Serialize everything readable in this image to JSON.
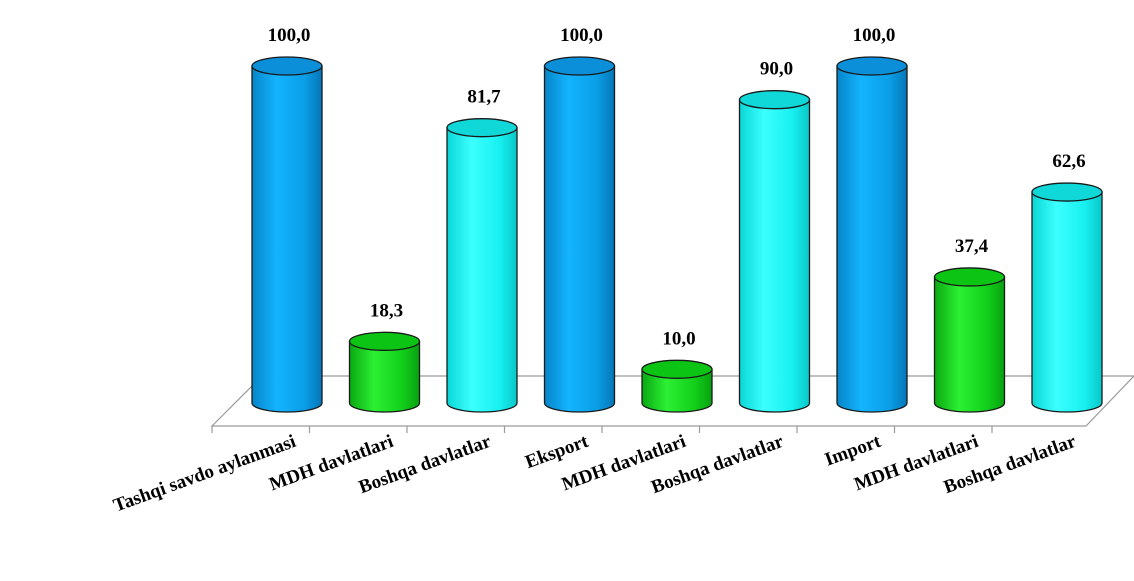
{
  "chart_data": {
    "type": "bar",
    "style": "3d-cylinder",
    "categories": [
      "Tashqi savdo aylanmasi",
      "MDH davlatlari",
      "Boshqa davlatlar",
      "Eksport",
      "MDH davlatlari",
      "Boshqa davlatlar",
      "Import",
      "MDH davlatlari",
      "Boshqa davlatlar"
    ],
    "values": [
      100.0,
      18.3,
      81.7,
      100.0,
      10.0,
      90.0,
      100.0,
      37.4,
      62.6
    ],
    "data_labels": [
      "100,0",
      "18,3",
      "81,7",
      "100,0",
      "10,0",
      "90,0",
      "100,0",
      "37,4",
      "62,6"
    ],
    "bar_colors": [
      "#0aa6ee",
      "#10d21a",
      "#12f4f4",
      "#0aa6ee",
      "#10d21a",
      "#12f4f4",
      "#0aa6ee",
      "#10d21a",
      "#12f4f4"
    ],
    "ylim": [
      0,
      100
    ],
    "grid": false,
    "legend": "none",
    "title": "",
    "xlabel": "",
    "ylabel": ""
  }
}
